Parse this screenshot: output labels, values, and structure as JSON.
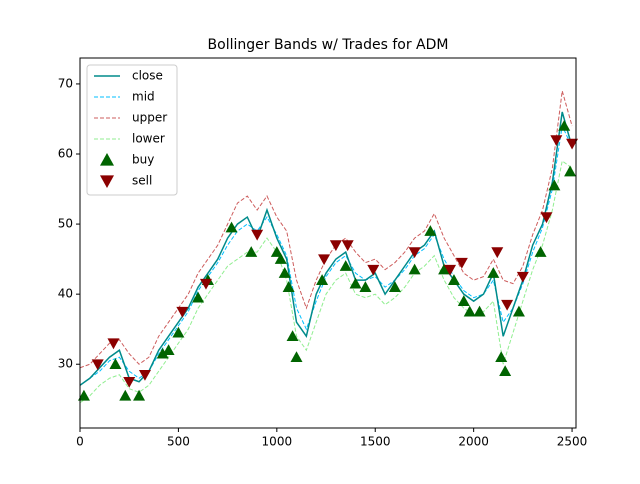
{
  "chart_data": {
    "type": "line",
    "title": "Bollinger Bands w/ Trades for ADM",
    "x": [
      0,
      50,
      100,
      150,
      200,
      250,
      300,
      350,
      400,
      450,
      500,
      550,
      600,
      650,
      700,
      750,
      800,
      850,
      900,
      950,
      1000,
      1050,
      1100,
      1150,
      1200,
      1250,
      1300,
      1350,
      1400,
      1450,
      1500,
      1550,
      1600,
      1650,
      1700,
      1750,
      1800,
      1850,
      1900,
      1950,
      2000,
      2050,
      2100,
      2150,
      2200,
      2250,
      2300,
      2350,
      2400,
      2450,
      2500
    ],
    "series": [
      {
        "name": "close",
        "color": "#008b8b",
        "style": "solid",
        "values": [
          27,
          28,
          29.5,
          31,
          32,
          28,
          27.5,
          29,
          32,
          34,
          36,
          38,
          41,
          43,
          45,
          48,
          50,
          51,
          48,
          52,
          48,
          45,
          36,
          34,
          40,
          43,
          45,
          46,
          42,
          42,
          43,
          40,
          42,
          44,
          46,
          47,
          49,
          44,
          42,
          40,
          39,
          40,
          43,
          34,
          38,
          42,
          47,
          50,
          56,
          66,
          61
        ]
      },
      {
        "name": "mid",
        "color": "#00bfff",
        "style": "dashed",
        "values": [
          27,
          28,
          29,
          30.5,
          31,
          29,
          28,
          29,
          31.5,
          33.5,
          35.5,
          37.5,
          40.5,
          42.5,
          44.5,
          47,
          49,
          50,
          49,
          51,
          48.5,
          45.5,
          38,
          35,
          39,
          42.5,
          44.5,
          45.5,
          43,
          42,
          42.5,
          41,
          42,
          43.5,
          45.5,
          46.5,
          48.5,
          45,
          42.5,
          40.5,
          39.5,
          40,
          42,
          36,
          38,
          41.5,
          46,
          49.5,
          55,
          64,
          61
        ]
      },
      {
        "name": "upper",
        "color": "#cd5c5c",
        "style": "dashed",
        "values": [
          29.5,
          30,
          31.5,
          33,
          33.5,
          31.5,
          30,
          31,
          34,
          36,
          38,
          40,
          43,
          45,
          47,
          50,
          53,
          54,
          52,
          54,
          51,
          49,
          42,
          38,
          42,
          45,
          47,
          48,
          46,
          44.5,
          45,
          43.5,
          44.5,
          46,
          48,
          49,
          51.5,
          48,
          45.5,
          43,
          42,
          42.5,
          45,
          42,
          41.5,
          44,
          48.5,
          52,
          58,
          69,
          64
        ]
      },
      {
        "name": "lower",
        "color": "#90ee90",
        "style": "dashed",
        "values": [
          24.5,
          25.5,
          27,
          28,
          28.5,
          26.5,
          26,
          27,
          29,
          31,
          33,
          35,
          38,
          40,
          42,
          44,
          45,
          46,
          46,
          48,
          46,
          42,
          34,
          32,
          36,
          40,
          42,
          43,
          40,
          39.5,
          40,
          38.5,
          39.5,
          41,
          43,
          44,
          45.5,
          42,
          39.5,
          38,
          37,
          37.5,
          39,
          30,
          34.5,
          39,
          43.5,
          47,
          52,
          59,
          58
        ]
      },
      {
        "name": "buy",
        "color": "#006400",
        "marker": "up",
        "x": [
          20,
          180,
          230,
          300,
          420,
          450,
          500,
          600,
          650,
          770,
          870,
          1000,
          1020,
          1040,
          1060,
          1080,
          1100,
          1230,
          1350,
          1400,
          1450,
          1600,
          1700,
          1780,
          1850,
          1900,
          1950,
          1980,
          2030,
          2100,
          2140,
          2160,
          2230,
          2340,
          2410,
          2460,
          2490
        ],
        "values": [
          25.5,
          30,
          25.5,
          25.5,
          31.5,
          32,
          34.5,
          39.5,
          42,
          49.5,
          46,
          46,
          45,
          43,
          41,
          34,
          31,
          42,
          44,
          41.5,
          41,
          41,
          43.5,
          49,
          43.5,
          42,
          39,
          37.5,
          37.5,
          43,
          31,
          29,
          37.5,
          46,
          55.5,
          64,
          57.5
        ]
      },
      {
        "name": "sell",
        "color": "#8b0000",
        "marker": "down",
        "x": [
          90,
          170,
          250,
          330,
          520,
          640,
          900,
          1240,
          1300,
          1360,
          1490,
          1700,
          1880,
          1940,
          2120,
          2170,
          2250,
          2370,
          2420,
          2500
        ],
        "values": [
          30,
          33,
          27.5,
          28.5,
          37.5,
          41.5,
          48.5,
          45,
          47,
          47,
          43.5,
          46,
          43.5,
          44.5,
          46,
          38.5,
          42.5,
          51,
          62,
          61.5
        ]
      }
    ],
    "xlim": [
      0,
      2520
    ],
    "ylim": [
      20.9,
      73.7
    ],
    "xticks": [
      0,
      500,
      1000,
      1500,
      2000,
      2500
    ],
    "yticks": [
      30,
      40,
      50,
      60,
      70
    ],
    "legend": "upper left"
  }
}
